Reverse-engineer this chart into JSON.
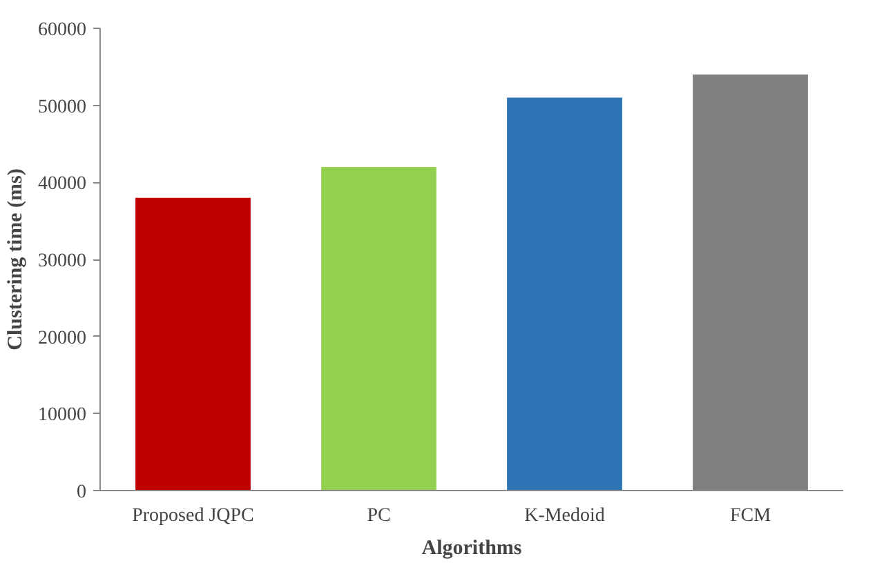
{
  "chart_data": {
    "type": "bar",
    "xlabel": "Algorithms",
    "ylabel": "Clustering time (ms)",
    "categories": [
      "Proposed JQPC",
      "PC",
      "K-Medoid",
      "FCM"
    ],
    "values": [
      38000,
      42000,
      51000,
      54000
    ],
    "colors": [
      "#c00000",
      "#92d050",
      "#2e75b6",
      "#7f7f7f"
    ],
    "ylim": [
      0,
      60000
    ],
    "yticks": [
      0,
      10000,
      20000,
      30000,
      40000,
      50000,
      60000
    ],
    "grid": false
  }
}
